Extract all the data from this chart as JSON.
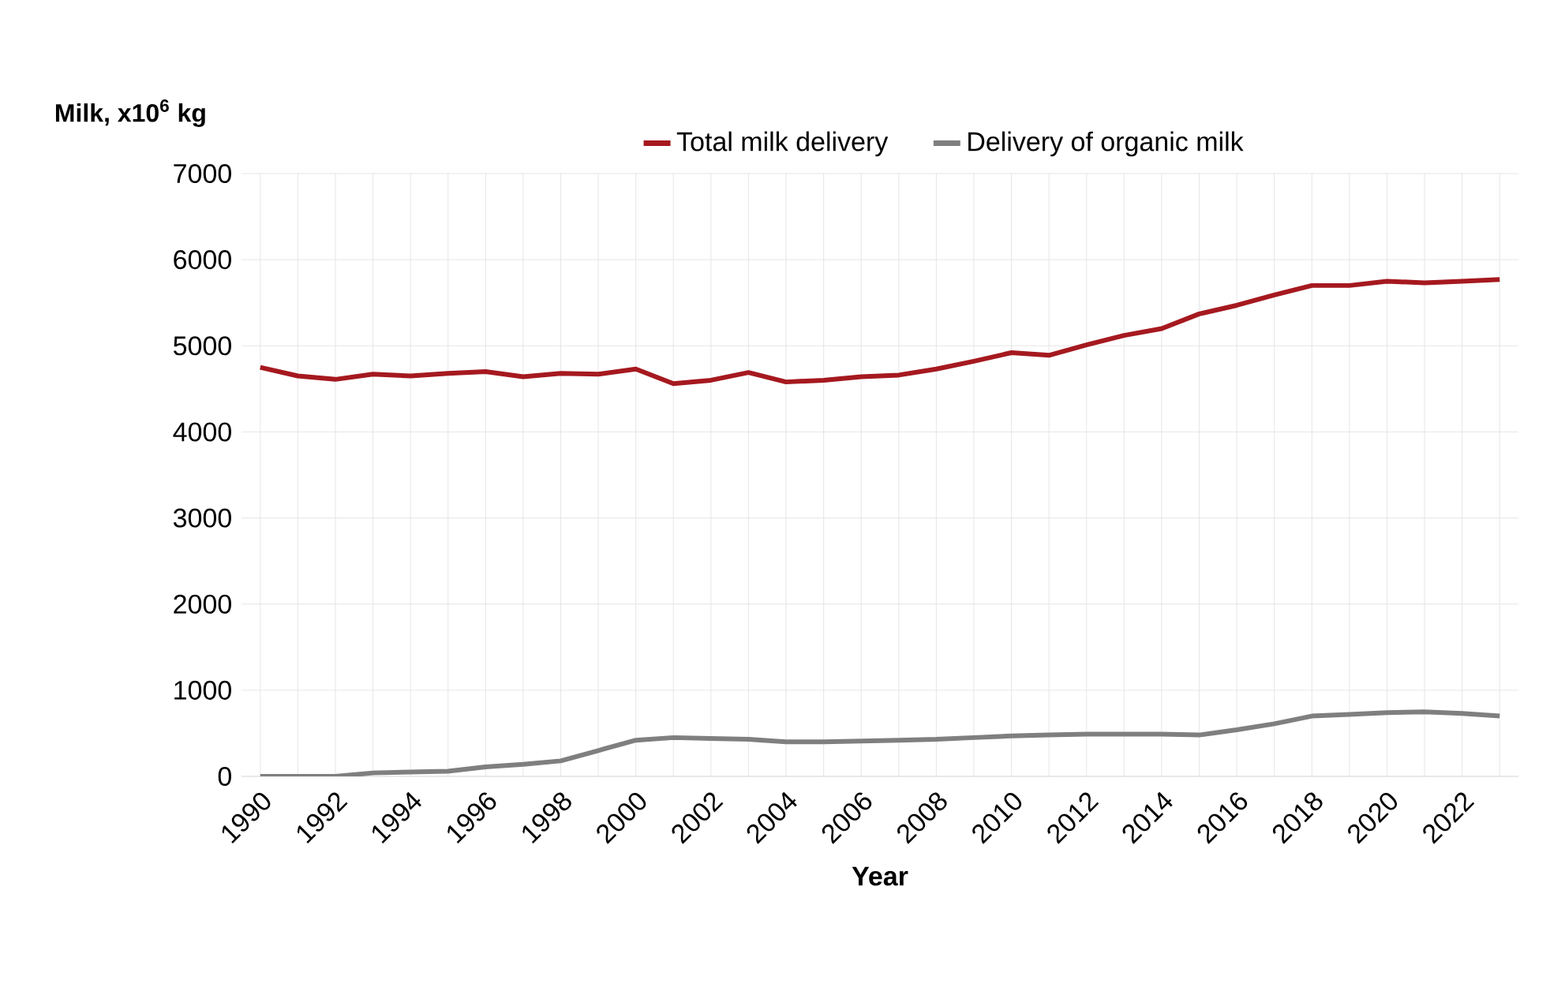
{
  "chart_data": {
    "type": "line",
    "xlabel": "Year",
    "ylabel": "Milk, x10$^{6}$ kg",
    "categories": [
      "1990",
      null,
      "1992",
      null,
      "1994",
      null,
      "1996",
      null,
      "1998",
      null,
      "2000",
      null,
      "2002",
      null,
      "2004",
      null,
      "2006",
      null,
      "2008",
      null,
      "2010",
      null,
      "2012",
      null,
      "2014",
      null,
      "2016",
      null,
      "2018",
      null,
      "2020",
      null,
      "2022",
      null
    ],
    "series": [
      {
        "name": "Total milk delivery",
        "color": "#a5191f",
        "values": [
          4750,
          4650,
          4610,
          4670,
          4650,
          4680,
          4700,
          4640,
          4680,
          4670,
          4730,
          4560,
          4600,
          4690,
          4580,
          4600,
          4640,
          4660,
          4730,
          4820,
          4920,
          4890,
          5010,
          5120,
          5200,
          5370,
          5470,
          5590,
          5700,
          5700,
          5750,
          5730,
          5750,
          5770
        ]
      },
      {
        "name": "Delivery of organic milk",
        "color": "#7f7f7f",
        "values": [
          0,
          0,
          0,
          40,
          50,
          60,
          110,
          140,
          180,
          300,
          420,
          450,
          440,
          430,
          400,
          400,
          410,
          420,
          430,
          450,
          470,
          480,
          490,
          490,
          490,
          480,
          540,
          610,
          700,
          720,
          740,
          750,
          730,
          700
        ]
      }
    ],
    "ylim": [
      0,
      7000
    ],
    "yticks": [
      0,
      1000,
      2000,
      3000,
      4000,
      5000,
      6000,
      7000
    ],
    "grid": true,
    "legend": "top",
    "marker": "none",
    "line_style": "solid"
  }
}
